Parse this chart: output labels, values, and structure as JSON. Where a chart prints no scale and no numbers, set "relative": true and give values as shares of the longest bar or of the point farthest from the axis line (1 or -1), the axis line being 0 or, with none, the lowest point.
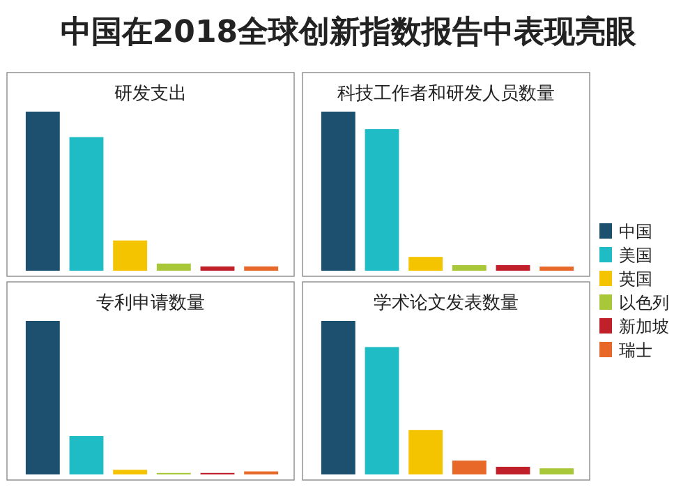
{
  "chart_data": [
    {
      "type": "bar",
      "title": "研发支出",
      "relative": true,
      "categories": [
        null
      ],
      "annotations": [
        "中国在2018全球创新指数报告中表现亮眼"
      ],
      "series": [
        {
          "color": "#1d4f6e",
          "values": [
            1
          ]
        },
        {
          "color": "#1fbcc6",
          "values": [
            0.84
          ]
        },
        {
          "color": "#f5c400",
          "values": [
            0.19
          ]
        },
        {
          "color": "#a8c83a",
          "values": [
            0.045
          ]
        },
        {
          "color": "#c0202a",
          "values": [
            0.027
          ]
        },
        {
          "color": "#e8682a",
          "values": [
            0.027
          ]
        }
      ]
    },
    {
      "type": "bar",
      "title": "科技工作者和研发人员数量",
      "relative": true,
      "categories": [
        null
      ],
      "legend": "right",
      "series": [
        {
          "name": "中国",
          "color": "#1d4f6e",
          "values": [
            1
          ]
        },
        {
          "name": "美国",
          "color": "#1fbcc6",
          "values": [
            0.89
          ]
        },
        {
          "name": "英国",
          "color": "#f5c400",
          "values": [
            0.087
          ]
        },
        {
          "name": "以色列",
          "color": "#a8c83a",
          "values": [
            0.035
          ]
        },
        {
          "name": "新加坡",
          "color": "#c0202a",
          "values": [
            0.035
          ]
        },
        {
          "name": "瑞士",
          "color": "#e8682a",
          "values": [
            0.026
          ]
        }
      ]
    },
    {
      "type": "bar",
      "title": "专利申请数量",
      "relative": true,
      "categories": [
        null
      ],
      "series": [
        {
          "color": "#1d4f6e",
          "values": [
            1
          ]
        },
        {
          "color": "#1fbcc6",
          "values": [
            0.25
          ]
        },
        {
          "color": "#f5c400",
          "values": [
            0.03
          ]
        },
        {
          "color": "#a8c83a",
          "values": [
            0.01
          ]
        },
        {
          "color": "#c0202a",
          "values": [
            0.01
          ]
        },
        {
          "color": "#e8682a",
          "values": [
            0.02
          ]
        }
      ]
    },
    {
      "type": "bar",
      "title": "学术论文发表数量",
      "relative": true,
      "categories": [
        null
      ],
      "series": [
        {
          "color": "#1d4f6e",
          "values": [
            1
          ]
        },
        {
          "color": "#1fbcc6",
          "values": [
            0.83
          ]
        },
        {
          "color": "#f5c400",
          "values": [
            0.29
          ]
        },
        {
          "color": "#e8682a",
          "values": [
            0.09
          ]
        },
        {
          "color": "#c0202a",
          "values": [
            0.05
          ]
        },
        {
          "color": "#a8c83a",
          "values": [
            0.04
          ]
        }
      ]
    }
  ]
}
